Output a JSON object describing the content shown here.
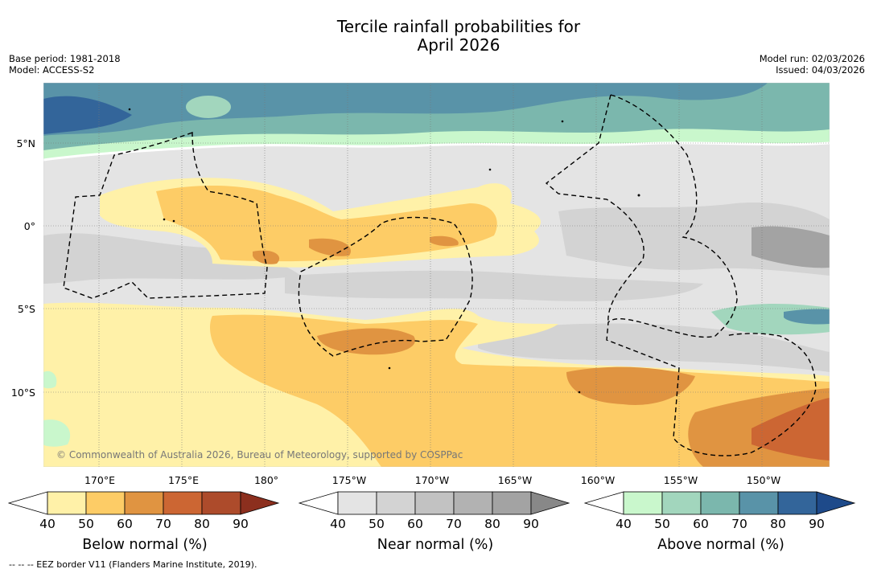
{
  "title": {
    "line1": "Tercile rainfall probabilities for",
    "line2": "April 2026"
  },
  "meta": {
    "base_period": "Base period: 1981-2018",
    "model": "Model: ACCESS-S2",
    "model_run": "Model run: 02/03/2026",
    "issued": "Issued: 04/03/2026"
  },
  "axes": {
    "lat_labels": [
      "5°N",
      "0°",
      "5°S",
      "10°S"
    ],
    "lon_labels": [
      "170°E",
      "175°E",
      "180°",
      "175°W",
      "170°W",
      "165°W",
      "160°W",
      "155°W",
      "150°W"
    ]
  },
  "copyright": "© Commonwealth of Australia 2026, Bureau of Meteorology, supported by COSPPac",
  "colorbars": [
    {
      "label": "Below normal (%)",
      "ticks": [
        "40",
        "50",
        "60",
        "70",
        "80",
        "90"
      ],
      "colors": [
        "#ffffff",
        "#fff1a8",
        "#fdcc66",
        "#e09441",
        "#cc6633",
        "#ad4b2b",
        "#8c2f1e"
      ]
    },
    {
      "label": "Near normal (%)",
      "ticks": [
        "40",
        "50",
        "60",
        "70",
        "80",
        "90"
      ],
      "colors": [
        "#ffffff",
        "#e4e4e4",
        "#d3d3d3",
        "#c2c2c2",
        "#b2b2b2",
        "#a3a3a3",
        "#888888"
      ]
    },
    {
      "label": "Above normal (%)",
      "ticks": [
        "40",
        "50",
        "60",
        "70",
        "80",
        "90"
      ],
      "colors": [
        "#ffffff",
        "#c9f7cc",
        "#a2d6bd",
        "#7bb7ad",
        "#5993a8",
        "#33659a",
        "#1e4a8a"
      ]
    }
  ],
  "footer": "-- -- -- EEZ border V11 (Flanders Marine Institute, 2019)."
}
